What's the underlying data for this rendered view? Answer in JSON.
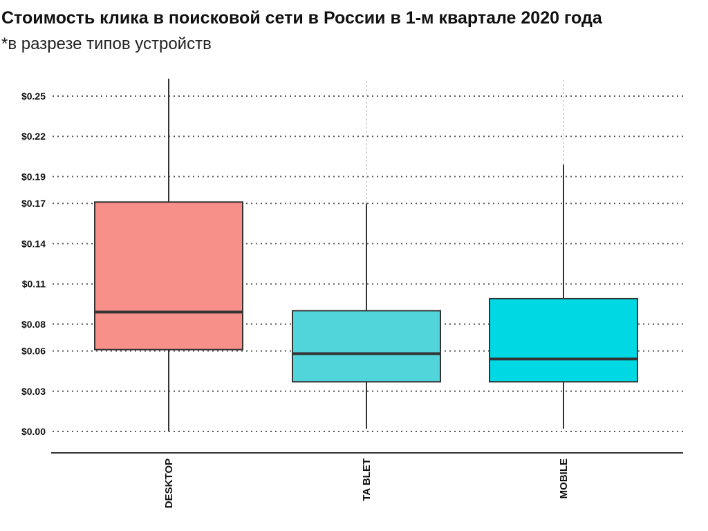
{
  "header": {
    "title": "Стоимость клика в поисковой сети в России в 1-м квартале 2020 года",
    "subtitle": "*в разрезе типов устройств"
  },
  "chart_data": {
    "type": "boxplot",
    "title": "Стоимость клика в поисковой сети в России в 1-м квартале 2020 года",
    "subtitle": "*в разрезе типов устройств",
    "xlabel": "",
    "ylabel": "",
    "ylim": [
      0.0,
      0.268
    ],
    "grid": "horizontal-dotted",
    "y_ticks": [
      {
        "value": 0.0,
        "label": "$0.00"
      },
      {
        "value": 0.03,
        "label": "$0.03"
      },
      {
        "value": 0.06,
        "label": "$0.06"
      },
      {
        "value": 0.08,
        "label": "$0.08"
      },
      {
        "value": 0.11,
        "label": "$0.11"
      },
      {
        "value": 0.14,
        "label": "$0.14"
      },
      {
        "value": 0.17,
        "label": "$0.17"
      },
      {
        "value": 0.19,
        "label": "$0.19"
      },
      {
        "value": 0.22,
        "label": "$0.22"
      },
      {
        "value": 0.25,
        "label": "$0.25"
      }
    ],
    "categories": [
      "DESKTOP",
      "TA BLET",
      "MOBILE"
    ],
    "boxes": [
      {
        "category": "DESKTOP",
        "whisker_low": 0.0,
        "q1": 0.061,
        "median": 0.089,
        "q3": 0.171,
        "whisker_high": 0.263,
        "color": "#f8908a"
      },
      {
        "category": "TA BLET",
        "whisker_low": 0.002,
        "q1": 0.037,
        "median": 0.058,
        "q3": 0.09,
        "whisker_high": 0.17,
        "faint_high": 0.262,
        "color": "#52d5da"
      },
      {
        "category": "MOBILE",
        "whisker_low": 0.002,
        "q1": 0.037,
        "median": 0.054,
        "q3": 0.099,
        "whisker_high": 0.199,
        "faint_high": 0.262,
        "color": "#00d8e3"
      }
    ]
  }
}
